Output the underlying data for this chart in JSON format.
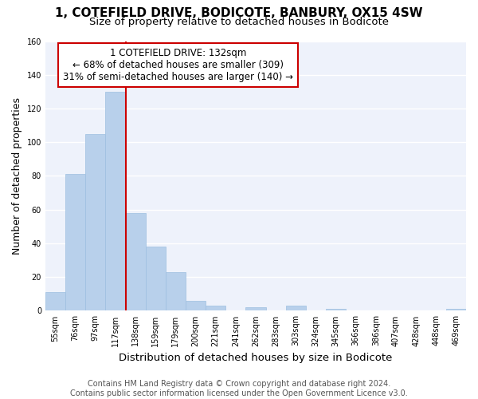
{
  "title_line1": "1, COTEFIELD DRIVE, BODICOTE, BANBURY, OX15 4SW",
  "title_line2": "Size of property relative to detached houses in Bodicote",
  "xlabel": "Distribution of detached houses by size in Bodicote",
  "ylabel": "Number of detached properties",
  "bar_labels": [
    "55sqm",
    "76sqm",
    "97sqm",
    "117sqm",
    "138sqm",
    "159sqm",
    "179sqm",
    "200sqm",
    "221sqm",
    "241sqm",
    "262sqm",
    "283sqm",
    "303sqm",
    "324sqm",
    "345sqm",
    "366sqm",
    "386sqm",
    "407sqm",
    "428sqm",
    "448sqm",
    "469sqm"
  ],
  "bar_values": [
    11,
    81,
    105,
    130,
    58,
    38,
    23,
    6,
    3,
    0,
    2,
    0,
    3,
    0,
    1,
    0,
    0,
    0,
    0,
    0,
    1
  ],
  "bar_color": "#b8d0eb",
  "bar_edge_color": "#9dbfe0",
  "vline_x": 3.5,
  "vline_color": "#cc0000",
  "annotation_line1": "1 COTEFIELD DRIVE: 132sqm",
  "annotation_line2": "← 68% of detached houses are smaller (309)",
  "annotation_line3": "31% of semi-detached houses are larger (140) →",
  "annotation_box_color": "#ffffff",
  "annotation_box_edge": "#cc0000",
  "ylim": [
    0,
    160
  ],
  "yticks": [
    0,
    20,
    40,
    60,
    80,
    100,
    120,
    140,
    160
  ],
  "bg_color": "#eef2fb",
  "grid_color": "#ffffff",
  "fig_bg_color": "#ffffff",
  "title_fontsize": 11,
  "subtitle_fontsize": 9.5,
  "ylabel_fontsize": 9,
  "xlabel_fontsize": 9.5,
  "tick_fontsize": 7,
  "annotation_fontsize": 8.5,
  "footer_fontsize": 7,
  "footer_line1": "Contains HM Land Registry data © Crown copyright and database right 2024.",
  "footer_line2": "Contains public sector information licensed under the Open Government Licence v3.0."
}
